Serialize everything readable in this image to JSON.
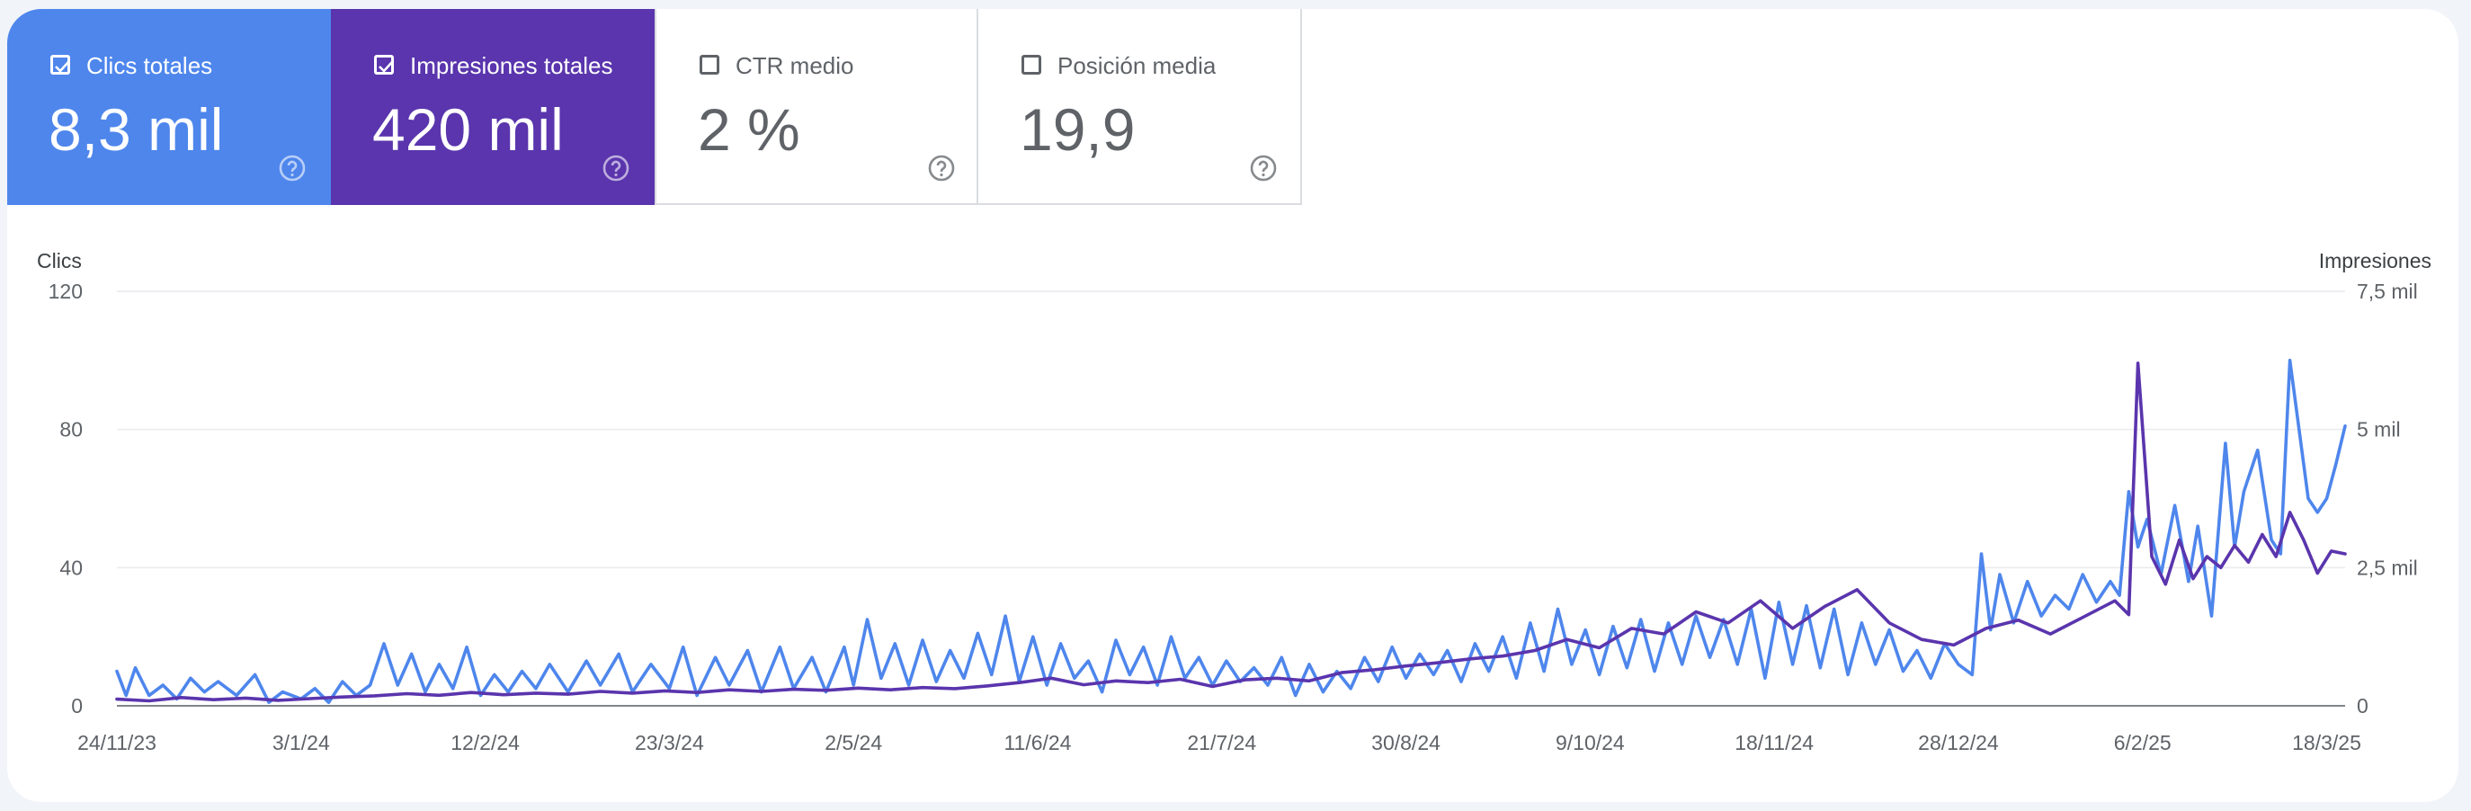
{
  "metrics": [
    {
      "label": "Clics totales",
      "value": "8,3 mil",
      "checked": true
    },
    {
      "label": "Impresiones totales",
      "value": "420 mil",
      "checked": true
    },
    {
      "label": "CTR medio",
      "value": "2 %",
      "checked": false
    },
    {
      "label": "Posición media",
      "value": "19,9",
      "checked": false
    }
  ],
  "colors": {
    "clicks": "#4e86ec",
    "impressions": "#5a35ad"
  },
  "icons": {
    "checkbox_checked": "checkbox-checked-icon",
    "checkbox_empty": "checkbox-empty-icon",
    "help": "help-icon"
  },
  "chart_data": {
    "type": "line",
    "ylabel_left": "Clics",
    "ylabel_right": "Impresiones",
    "ylim_left": [
      0,
      120
    ],
    "ylim_right": [
      0,
      7500
    ],
    "y_ticks_left": [
      {
        "value": 0,
        "label": "0"
      },
      {
        "value": 40,
        "label": "40"
      },
      {
        "value": 80,
        "label": "80"
      },
      {
        "value": 120,
        "label": "120"
      }
    ],
    "y_ticks_right": [
      {
        "value": 0,
        "label": "0"
      },
      {
        "value": 2500,
        "label": "2,5 mil"
      },
      {
        "value": 5000,
        "label": "5 mil"
      },
      {
        "value": 7500,
        "label": "7,5 mil"
      }
    ],
    "x_range": [
      "2023-11-24",
      "2025-03-22"
    ],
    "x_ticks": [
      {
        "date": "2023-11-24",
        "label": "24/11/23"
      },
      {
        "date": "2024-01-03",
        "label": "3/1/24"
      },
      {
        "date": "2024-02-12",
        "label": "12/2/24"
      },
      {
        "date": "2024-03-23",
        "label": "23/3/24"
      },
      {
        "date": "2024-05-02",
        "label": "2/5/24"
      },
      {
        "date": "2024-06-11",
        "label": "11/6/24"
      },
      {
        "date": "2024-07-21",
        "label": "21/7/24"
      },
      {
        "date": "2024-08-30",
        "label": "30/8/24"
      },
      {
        "date": "2024-10-09",
        "label": "9/10/24"
      },
      {
        "date": "2024-11-18",
        "label": "18/11/24"
      },
      {
        "date": "2024-12-28",
        "label": "28/12/24"
      },
      {
        "date": "2025-02-06",
        "label": "6/2/25"
      },
      {
        "date": "2025-03-18",
        "label": "18/3/25"
      }
    ],
    "grid": true,
    "series": [
      {
        "name": "Clics totales",
        "axis": "left",
        "points": [
          [
            "2023-11-24",
            10
          ],
          [
            "2023-11-26",
            3
          ],
          [
            "2023-11-28",
            11
          ],
          [
            "2023-12-01",
            3
          ],
          [
            "2023-12-04",
            6
          ],
          [
            "2023-12-07",
            2
          ],
          [
            "2023-12-10",
            8
          ],
          [
            "2023-12-13",
            4
          ],
          [
            "2023-12-16",
            7
          ],
          [
            "2023-12-20",
            3
          ],
          [
            "2023-12-24",
            9
          ],
          [
            "2023-12-27",
            1
          ],
          [
            "2023-12-30",
            4
          ],
          [
            "2024-01-03",
            2
          ],
          [
            "2024-01-06",
            5
          ],
          [
            "2024-01-09",
            1
          ],
          [
            "2024-01-12",
            7
          ],
          [
            "2024-01-15",
            3
          ],
          [
            "2024-01-18",
            6
          ],
          [
            "2024-01-21",
            18
          ],
          [
            "2024-01-24",
            6
          ],
          [
            "2024-01-27",
            15
          ],
          [
            "2024-01-30",
            4
          ],
          [
            "2024-02-02",
            12
          ],
          [
            "2024-02-05",
            5
          ],
          [
            "2024-02-08",
            17
          ],
          [
            "2024-02-11",
            3
          ],
          [
            "2024-02-14",
            9
          ],
          [
            "2024-02-17",
            4
          ],
          [
            "2024-02-20",
            10
          ],
          [
            "2024-02-23",
            5
          ],
          [
            "2024-02-26",
            12
          ],
          [
            "2024-03-01",
            4
          ],
          [
            "2024-03-05",
            13
          ],
          [
            "2024-03-08",
            6
          ],
          [
            "2024-03-12",
            15
          ],
          [
            "2024-03-15",
            4
          ],
          [
            "2024-03-19",
            12
          ],
          [
            "2024-03-23",
            5
          ],
          [
            "2024-03-26",
            17
          ],
          [
            "2024-03-29",
            3
          ],
          [
            "2024-04-02",
            14
          ],
          [
            "2024-04-05",
            6
          ],
          [
            "2024-04-09",
            16
          ],
          [
            "2024-04-12",
            4
          ],
          [
            "2024-04-16",
            17
          ],
          [
            "2024-04-19",
            5
          ],
          [
            "2024-04-23",
            14
          ],
          [
            "2024-04-26",
            4
          ],
          [
            "2024-04-30",
            17
          ],
          [
            "2024-05-02",
            6
          ],
          [
            "2024-05-05",
            25
          ],
          [
            "2024-05-08",
            8
          ],
          [
            "2024-05-11",
            18
          ],
          [
            "2024-05-14",
            6
          ],
          [
            "2024-05-17",
            19
          ],
          [
            "2024-05-20",
            7
          ],
          [
            "2024-05-23",
            16
          ],
          [
            "2024-05-26",
            8
          ],
          [
            "2024-05-29",
            21
          ],
          [
            "2024-06-01",
            9
          ],
          [
            "2024-06-04",
            26
          ],
          [
            "2024-06-07",
            7
          ],
          [
            "2024-06-10",
            20
          ],
          [
            "2024-06-13",
            6
          ],
          [
            "2024-06-16",
            18
          ],
          [
            "2024-06-19",
            8
          ],
          [
            "2024-06-22",
            13
          ],
          [
            "2024-06-25",
            4
          ],
          [
            "2024-06-28",
            19
          ],
          [
            "2024-07-01",
            9
          ],
          [
            "2024-07-04",
            17
          ],
          [
            "2024-07-07",
            6
          ],
          [
            "2024-07-10",
            20
          ],
          [
            "2024-07-13",
            8
          ],
          [
            "2024-07-16",
            14
          ],
          [
            "2024-07-19",
            6
          ],
          [
            "2024-07-22",
            13
          ],
          [
            "2024-07-25",
            7
          ],
          [
            "2024-07-28",
            11
          ],
          [
            "2024-07-31",
            6
          ],
          [
            "2024-08-03",
            14
          ],
          [
            "2024-08-06",
            3
          ],
          [
            "2024-08-09",
            12
          ],
          [
            "2024-08-12",
            4
          ],
          [
            "2024-08-15",
            10
          ],
          [
            "2024-08-18",
            5
          ],
          [
            "2024-08-21",
            14
          ],
          [
            "2024-08-24",
            7
          ],
          [
            "2024-08-27",
            17
          ],
          [
            "2024-08-30",
            8
          ],
          [
            "2024-09-02",
            15
          ],
          [
            "2024-09-05",
            9
          ],
          [
            "2024-09-08",
            16
          ],
          [
            "2024-09-11",
            7
          ],
          [
            "2024-09-14",
            18
          ],
          [
            "2024-09-17",
            10
          ],
          [
            "2024-09-20",
            20
          ],
          [
            "2024-09-23",
            8
          ],
          [
            "2024-09-26",
            24
          ],
          [
            "2024-09-29",
            10
          ],
          [
            "2024-10-02",
            28
          ],
          [
            "2024-10-05",
            12
          ],
          [
            "2024-10-08",
            22
          ],
          [
            "2024-10-11",
            9
          ],
          [
            "2024-10-14",
            23
          ],
          [
            "2024-10-17",
            11
          ],
          [
            "2024-10-20",
            25
          ],
          [
            "2024-10-23",
            10
          ],
          [
            "2024-10-26",
            24
          ],
          [
            "2024-10-29",
            12
          ],
          [
            "2024-11-01",
            26
          ],
          [
            "2024-11-04",
            14
          ],
          [
            "2024-11-07",
            25
          ],
          [
            "2024-11-10",
            12
          ],
          [
            "2024-11-13",
            28
          ],
          [
            "2024-11-16",
            8
          ],
          [
            "2024-11-19",
            30
          ],
          [
            "2024-11-22",
            12
          ],
          [
            "2024-11-25",
            29
          ],
          [
            "2024-11-28",
            11
          ],
          [
            "2024-12-01",
            28
          ],
          [
            "2024-12-04",
            9
          ],
          [
            "2024-12-07",
            24
          ],
          [
            "2024-12-10",
            12
          ],
          [
            "2024-12-13",
            22
          ],
          [
            "2024-12-16",
            10
          ],
          [
            "2024-12-19",
            16
          ],
          [
            "2024-12-22",
            8
          ],
          [
            "2024-12-25",
            18
          ],
          [
            "2024-12-28",
            12
          ],
          [
            "2024-12-31",
            9
          ],
          [
            "2025-01-02",
            44
          ],
          [
            "2025-01-04",
            22
          ],
          [
            "2025-01-06",
            38
          ],
          [
            "2025-01-09",
            24
          ],
          [
            "2025-01-12",
            36
          ],
          [
            "2025-01-15",
            26
          ],
          [
            "2025-01-18",
            32
          ],
          [
            "2025-01-21",
            28
          ],
          [
            "2025-01-24",
            38
          ],
          [
            "2025-01-27",
            30
          ],
          [
            "2025-01-30",
            36
          ],
          [
            "2025-02-01",
            32
          ],
          [
            "2025-02-03",
            62
          ],
          [
            "2025-02-05",
            46
          ],
          [
            "2025-02-07",
            54
          ],
          [
            "2025-02-10",
            38
          ],
          [
            "2025-02-13",
            58
          ],
          [
            "2025-02-16",
            36
          ],
          [
            "2025-02-18",
            52
          ],
          [
            "2025-02-21",
            26
          ],
          [
            "2025-02-24",
            76
          ],
          [
            "2025-02-26",
            46
          ],
          [
            "2025-02-28",
            62
          ],
          [
            "2025-03-03",
            74
          ],
          [
            "2025-03-06",
            48
          ],
          [
            "2025-03-08",
            44
          ],
          [
            "2025-03-10",
            100
          ],
          [
            "2025-03-12",
            80
          ],
          [
            "2025-03-14",
            60
          ],
          [
            "2025-03-16",
            56
          ],
          [
            "2025-03-18",
            60
          ],
          [
            "2025-03-20",
            70
          ],
          [
            "2025-03-22",
            81
          ]
        ]
      },
      {
        "name": "Impresiones totales",
        "axis": "right",
        "points": [
          [
            "2023-11-24",
            120
          ],
          [
            "2023-12-01",
            90
          ],
          [
            "2023-12-08",
            150
          ],
          [
            "2023-12-15",
            110
          ],
          [
            "2023-12-22",
            140
          ],
          [
            "2023-12-29",
            100
          ],
          [
            "2024-01-05",
            130
          ],
          [
            "2024-01-12",
            160
          ],
          [
            "2024-01-19",
            180
          ],
          [
            "2024-01-26",
            220
          ],
          [
            "2024-02-02",
            190
          ],
          [
            "2024-02-09",
            240
          ],
          [
            "2024-02-16",
            200
          ],
          [
            "2024-02-23",
            230
          ],
          [
            "2024-03-01",
            210
          ],
          [
            "2024-03-08",
            260
          ],
          [
            "2024-03-15",
            230
          ],
          [
            "2024-03-22",
            270
          ],
          [
            "2024-03-29",
            240
          ],
          [
            "2024-04-05",
            290
          ],
          [
            "2024-04-12",
            260
          ],
          [
            "2024-04-19",
            300
          ],
          [
            "2024-04-26",
            280
          ],
          [
            "2024-05-03",
            320
          ],
          [
            "2024-05-10",
            290
          ],
          [
            "2024-05-17",
            330
          ],
          [
            "2024-05-24",
            310
          ],
          [
            "2024-05-31",
            360
          ],
          [
            "2024-06-07",
            420
          ],
          [
            "2024-06-14",
            500
          ],
          [
            "2024-06-21",
            380
          ],
          [
            "2024-06-28",
            450
          ],
          [
            "2024-07-05",
            420
          ],
          [
            "2024-07-12",
            480
          ],
          [
            "2024-07-19",
            350
          ],
          [
            "2024-07-26",
            470
          ],
          [
            "2024-08-02",
            500
          ],
          [
            "2024-08-09",
            450
          ],
          [
            "2024-08-16",
            600
          ],
          [
            "2024-08-23",
            650
          ],
          [
            "2024-08-30",
            720
          ],
          [
            "2024-09-06",
            780
          ],
          [
            "2024-09-13",
            850
          ],
          [
            "2024-09-20",
            900
          ],
          [
            "2024-09-27",
            1000
          ],
          [
            "2024-10-04",
            1200
          ],
          [
            "2024-10-11",
            1050
          ],
          [
            "2024-10-18",
            1400
          ],
          [
            "2024-10-25",
            1300
          ],
          [
            "2024-11-01",
            1700
          ],
          [
            "2024-11-08",
            1500
          ],
          [
            "2024-11-15",
            1900
          ],
          [
            "2024-11-22",
            1400
          ],
          [
            "2024-11-29",
            1800
          ],
          [
            "2024-12-06",
            2100
          ],
          [
            "2024-12-13",
            1500
          ],
          [
            "2024-12-20",
            1200
          ],
          [
            "2024-12-27",
            1100
          ],
          [
            "2025-01-03",
            1400
          ],
          [
            "2025-01-10",
            1550
          ],
          [
            "2025-01-17",
            1300
          ],
          [
            "2025-01-24",
            1600
          ],
          [
            "2025-01-31",
            1900
          ],
          [
            "2025-02-03",
            1650
          ],
          [
            "2025-02-05",
            6200
          ],
          [
            "2025-02-08",
            2700
          ],
          [
            "2025-02-11",
            2200
          ],
          [
            "2025-02-14",
            3000
          ],
          [
            "2025-02-17",
            2300
          ],
          [
            "2025-02-20",
            2700
          ],
          [
            "2025-02-23",
            2500
          ],
          [
            "2025-02-26",
            2900
          ],
          [
            "2025-03-01",
            2600
          ],
          [
            "2025-03-04",
            3100
          ],
          [
            "2025-03-07",
            2700
          ],
          [
            "2025-03-10",
            3500
          ],
          [
            "2025-03-13",
            3000
          ],
          [
            "2025-03-16",
            2400
          ],
          [
            "2025-03-19",
            2800
          ],
          [
            "2025-03-22",
            2750
          ]
        ]
      }
    ]
  }
}
